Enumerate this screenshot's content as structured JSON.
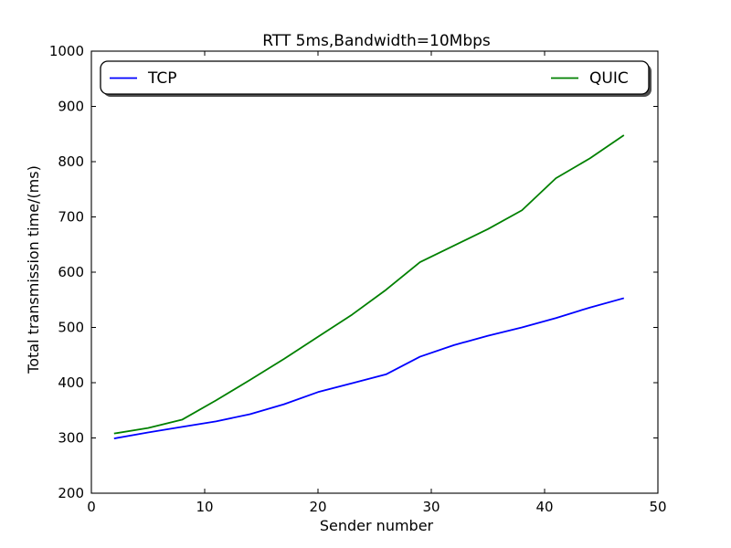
{
  "chart_data": {
    "type": "line",
    "title": "RTT 5ms,Bandwidth=10Mbps",
    "xlabel": "Sender number",
    "ylabel": "Total transmission time/(ms)",
    "xlim": [
      0,
      50
    ],
    "ylim": [
      200,
      1000
    ],
    "xticks": [
      0,
      10,
      20,
      30,
      40,
      50
    ],
    "yticks": [
      200,
      300,
      400,
      500,
      600,
      700,
      800,
      900,
      1000
    ],
    "grid": false,
    "legend_position": "upper full-width inside plot; TCP at left, QUIC at right; fancy rounded box with shadow",
    "x": [
      2,
      5,
      8,
      11,
      14,
      17,
      20,
      23,
      26,
      29,
      32,
      35,
      38,
      41,
      44,
      47
    ],
    "series": [
      {
        "name": "TCP",
        "color": "#0000ff",
        "values": [
          299,
          310,
          320,
          330,
          343,
          361,
          383,
          399,
          415,
          447,
          468,
          485,
          500,
          517,
          536,
          553
        ]
      },
      {
        "name": "QUIC",
        "color": "#008000",
        "values": [
          308,
          318,
          333,
          368,
          405,
          443,
          483,
          523,
          568,
          618,
          648,
          678,
          712,
          770,
          806,
          848
        ]
      }
    ],
    "background_color": "#ffffff",
    "spine_color": "#000000"
  }
}
